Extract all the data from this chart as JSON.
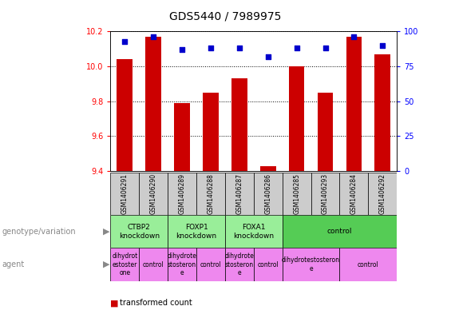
{
  "title": "GDS5440 / 7989975",
  "samples": [
    "GSM1406291",
    "GSM1406290",
    "GSM1406289",
    "GSM1406288",
    "GSM1406287",
    "GSM1406286",
    "GSM1406285",
    "GSM1406293",
    "GSM1406284",
    "GSM1406292"
  ],
  "transformed_count": [
    10.04,
    10.17,
    9.79,
    9.85,
    9.93,
    9.43,
    10.0,
    9.85,
    10.17,
    10.07
  ],
  "percentile_rank": [
    93,
    96,
    87,
    88,
    88,
    82,
    88,
    88,
    96,
    90
  ],
  "ylim_left": [
    9.4,
    10.2
  ],
  "ylim_right": [
    0,
    100
  ],
  "yticks_left": [
    9.4,
    9.6,
    9.8,
    10.0,
    10.2
  ],
  "yticks_right": [
    0,
    25,
    50,
    75,
    100
  ],
  "bar_color": "#cc0000",
  "dot_color": "#0000cc",
  "bar_width": 0.55,
  "genotype_groups": [
    {
      "label": "CTBP2\nknockdown",
      "start": 0,
      "end": 2,
      "color": "#99ee99"
    },
    {
      "label": "FOXP1\nknockdown",
      "start": 2,
      "end": 4,
      "color": "#99ee99"
    },
    {
      "label": "FOXA1\nknockdown",
      "start": 4,
      "end": 6,
      "color": "#99ee99"
    },
    {
      "label": "control",
      "start": 6,
      "end": 10,
      "color": "#55cc55"
    }
  ],
  "agent_groups": [
    {
      "label": "dihydrot\nestoster\none",
      "start": 0,
      "end": 1,
      "color": "#ee88ee"
    },
    {
      "label": "control",
      "start": 1,
      "end": 2,
      "color": "#ee88ee"
    },
    {
      "label": "dihydrote\nstosteron\ne",
      "start": 2,
      "end": 3,
      "color": "#ee88ee"
    },
    {
      "label": "control",
      "start": 3,
      "end": 4,
      "color": "#ee88ee"
    },
    {
      "label": "dihydrote\nstosteron\ne",
      "start": 4,
      "end": 5,
      "color": "#ee88ee"
    },
    {
      "label": "control",
      "start": 5,
      "end": 6,
      "color": "#ee88ee"
    },
    {
      "label": "dihydrotestosteron\ne",
      "start": 6,
      "end": 8,
      "color": "#ee88ee"
    },
    {
      "label": "control",
      "start": 8,
      "end": 10,
      "color": "#ee88ee"
    }
  ],
  "tick_fontsize": 7,
  "title_fontsize": 10,
  "sample_fontsize": 5.5,
  "geno_fontsize": 6.5,
  "agent_fontsize": 5.5,
  "legend_fontsize": 7,
  "label_fontsize": 7
}
